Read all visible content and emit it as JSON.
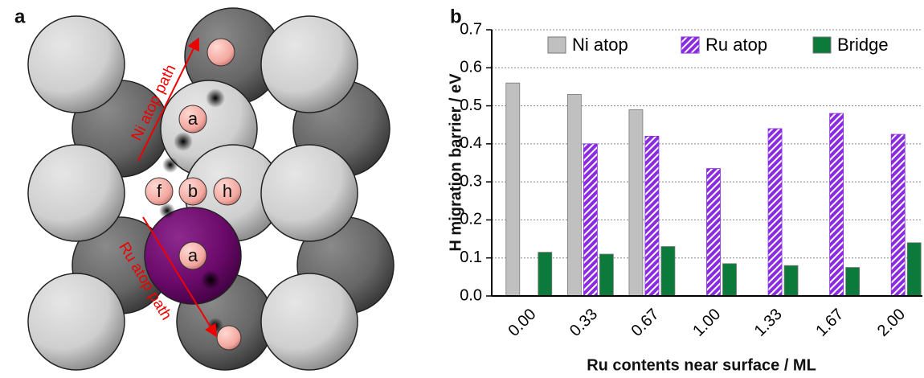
{
  "panel_a": {
    "label": "a",
    "paths": [
      "Ni atop path",
      "Ru atop path"
    ],
    "sites": [
      "a",
      "f",
      "b",
      "h",
      "a"
    ]
  },
  "chart_data": {
    "type": "bar",
    "panel_label": "b",
    "x_label": "Ru contents near surface / ML",
    "y_label": "H migration barrier / eV",
    "categories": [
      "0.00",
      "0.33",
      "0.67",
      "1.00",
      "1.33",
      "1.67",
      "2.00"
    ],
    "series": [
      {
        "name": "Ni atop",
        "color": "#c0c0c0",
        "values": [
          0.56,
          0.53,
          0.49,
          null,
          null,
          null,
          null
        ]
      },
      {
        "name": "Ru atop",
        "color": "#8a2be2",
        "values": [
          null,
          0.4,
          0.42,
          0.335,
          0.44,
          0.48,
          0.425
        ]
      },
      {
        "name": "Bridge",
        "color": "#0b7a3b",
        "values": [
          0.115,
          0.11,
          0.13,
          0.085,
          0.08,
          0.075,
          0.14
        ]
      }
    ],
    "ylim": [
      0,
      0.7
    ],
    "yticks": [
      {
        "value": 0,
        "label": "0.0"
      },
      0.1,
      0.2,
      0.3,
      0.4,
      0.5,
      0.6,
      0.7
    ],
    "grid": true,
    "legend": "top"
  }
}
